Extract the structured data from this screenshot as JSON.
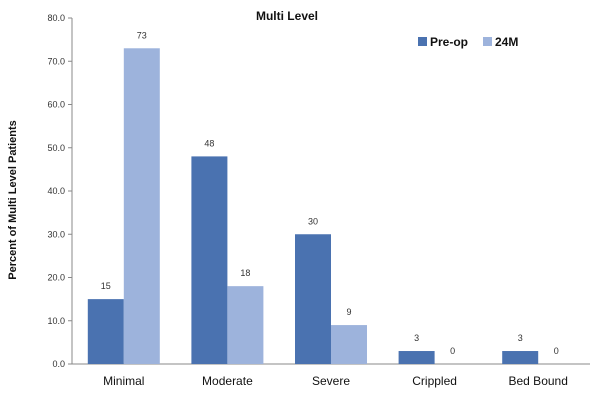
{
  "chart_data": {
    "type": "bar",
    "title": "Multi Level",
    "ylabel": "Percent of Multi Level Patients",
    "xlabel": "",
    "categories": [
      "Minimal",
      "Moderate",
      "Severe",
      "Crippled",
      "Bed Bound"
    ],
    "series": [
      {
        "name": "Pre-op",
        "values": [
          15,
          48,
          30,
          3,
          3
        ],
        "labels": [
          "15",
          "48",
          "30",
          "3",
          "3"
        ],
        "color": "#4a72b0"
      },
      {
        "name": "24M",
        "values": [
          73,
          18,
          9,
          0,
          0
        ],
        "labels": [
          "73",
          "18",
          "9",
          "0",
          "0"
        ],
        "color": "#9db3dc"
      }
    ],
    "ylim": [
      0,
      80
    ],
    "yticks": [
      "0.0",
      "10.0",
      "20.0",
      "30.0",
      "40.0",
      "50.0",
      "60.0",
      "70.0",
      "80.0"
    ],
    "legend_position": "top-right",
    "grid": false
  }
}
